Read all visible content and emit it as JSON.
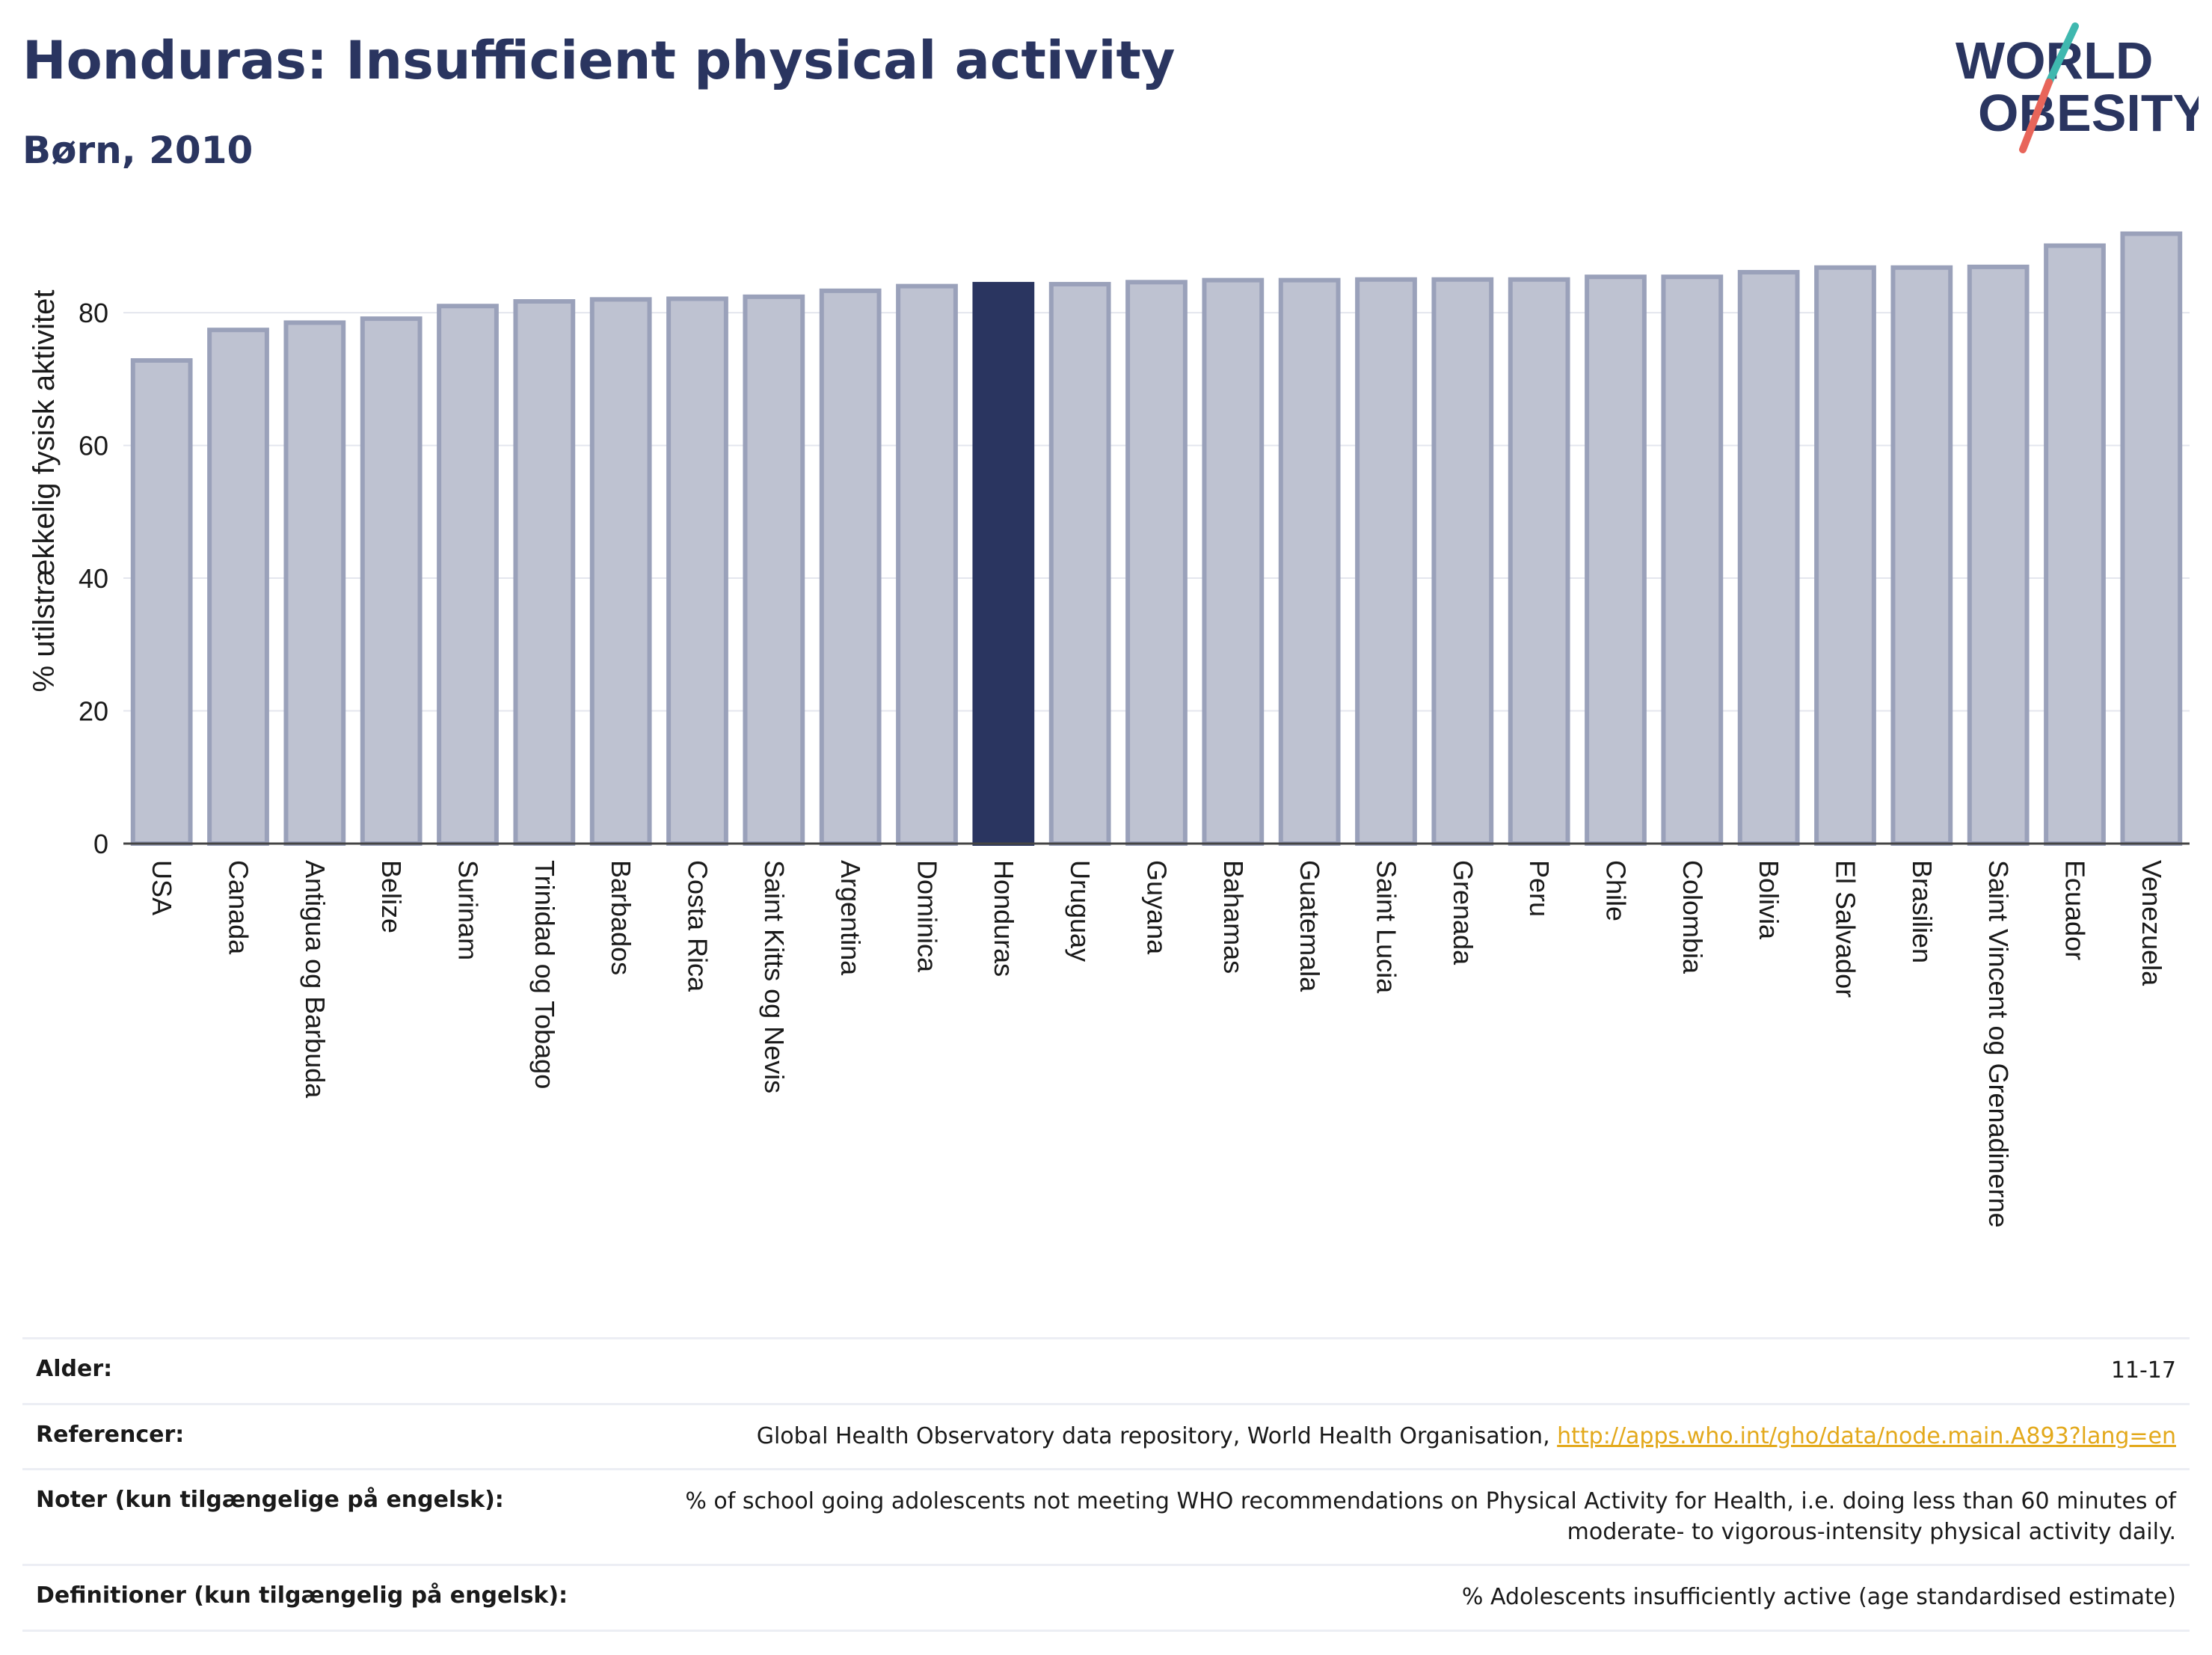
{
  "header": {
    "title": "Honduras: Insufficient physical activity",
    "subtitle": "Børn, 2010"
  },
  "logo": {
    "line1": "WORLD",
    "line2": "OBESITY"
  },
  "colors": {
    "highlight": "#2a3560",
    "bar": "#bec2d1",
    "bar_stroke": "#9aa1ba",
    "logo_teal": "#3fb8af",
    "logo_red": "#e8655a",
    "link": "#e3a91c"
  },
  "chart_data": {
    "type": "bar",
    "title": "Honduras: Insufficient physical activity",
    "subtitle": "Børn, 2010",
    "xlabel": "",
    "ylabel": "% utilstrækkelig fysisk aktivitet",
    "ylim": [
      0,
      95
    ],
    "yticks": [
      0,
      20,
      40,
      60,
      80
    ],
    "grid": true,
    "highlight": "Honduras",
    "categories": [
      "USA",
      "Canada",
      "Antigua og Barbuda",
      "Belize",
      "Surinam",
      "Trinidad og Tobago",
      "Barbados",
      "Costa Rica",
      "Saint Kitts og Nevis",
      "Argentina",
      "Dominica",
      "Honduras",
      "Uruguay",
      "Guyana",
      "Bahamas",
      "Guatemala",
      "Saint Lucia",
      "Grenada",
      "Peru",
      "Chile",
      "Colombia",
      "Bolivia",
      "El Salvador",
      "Brasilien",
      "Saint Vincent og Grenadinerne",
      "Ecuador",
      "Venezuela"
    ],
    "values": [
      72.8,
      77.4,
      78.5,
      79.1,
      81.0,
      81.7,
      82.0,
      82.1,
      82.4,
      83.3,
      84.0,
      84.3,
      84.3,
      84.6,
      84.9,
      84.9,
      85.0,
      85.0,
      85.0,
      85.4,
      85.4,
      86.1,
      86.8,
      86.8,
      86.9,
      90.1,
      91.9
    ]
  },
  "meta": {
    "alder_label": "Alder:",
    "alder_value": "11-17",
    "ref_label": "Referencer:",
    "ref_text": "Global Health Observatory data repository, World Health Organisation, ",
    "ref_link": "http://apps.who.int/gho/data/node.main.A893?lang=en",
    "noter_label": "Noter (kun tilgængelige på engelsk):",
    "noter_value": "% of school going adolescents not meeting WHO recommendations on Physical Activity for Health, i.e. doing less than 60 minutes of moderate- to vigorous-intensity physical activity daily.",
    "def_label": "Definitioner (kun tilgængelig på engelsk):",
    "def_value": "% Adolescents insufficiently active (age standardised estimate)"
  }
}
